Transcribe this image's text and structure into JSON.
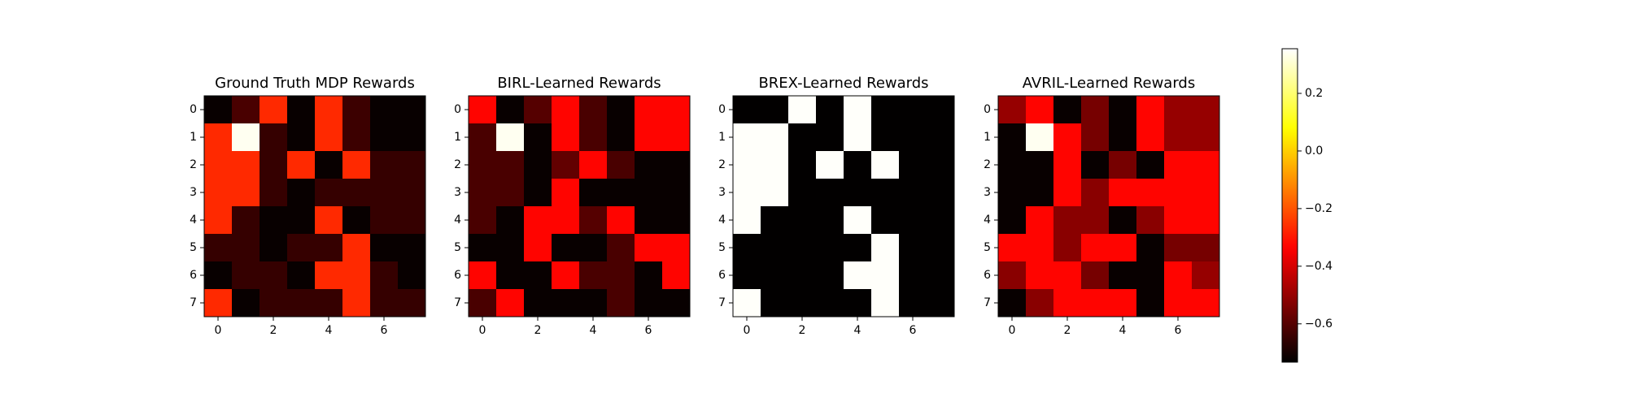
{
  "chart_data": [
    {
      "type": "heatmap",
      "title": "Ground Truth MDP Rewards",
      "colormap": "hot",
      "xlim": [
        -0.5,
        7.5
      ],
      "ylim": [
        7.5,
        -0.5
      ],
      "xticks": [
        0,
        2,
        4,
        6
      ],
      "yticks": [
        0,
        1,
        2,
        3,
        4,
        5,
        6,
        7
      ],
      "values": [
        [
          -0.72,
          -0.62,
          -0.27,
          -0.72,
          -0.27,
          -0.64,
          -0.72,
          -0.72
        ],
        [
          -0.27,
          0.34,
          -0.65,
          -0.72,
          -0.27,
          -0.64,
          -0.72,
          -0.72
        ],
        [
          -0.27,
          -0.27,
          -0.65,
          -0.27,
          -0.72,
          -0.27,
          -0.65,
          -0.65
        ],
        [
          -0.27,
          -0.27,
          -0.65,
          -0.72,
          -0.65,
          -0.65,
          -0.65,
          -0.65
        ],
        [
          -0.27,
          -0.65,
          -0.72,
          -0.72,
          -0.27,
          -0.72,
          -0.65,
          -0.65
        ],
        [
          -0.65,
          -0.65,
          -0.72,
          -0.65,
          -0.65,
          -0.27,
          -0.72,
          -0.72
        ],
        [
          -0.72,
          -0.65,
          -0.65,
          -0.72,
          -0.27,
          -0.27,
          -0.65,
          -0.72
        ],
        [
          -0.27,
          -0.72,
          -0.65,
          -0.65,
          -0.65,
          -0.27,
          -0.65,
          -0.65
        ]
      ]
    },
    {
      "type": "heatmap",
      "title": "BIRL-Learned Rewards",
      "colormap": "hot",
      "xlim": [
        -0.5,
        7.5
      ],
      "ylim": [
        7.5,
        -0.5
      ],
      "xticks": [
        0,
        2,
        4,
        6
      ],
      "yticks": [
        0,
        1,
        2,
        3,
        4,
        5,
        6,
        7
      ],
      "values": [
        [
          -0.33,
          -0.72,
          -0.6,
          -0.33,
          -0.62,
          -0.72,
          -0.33,
          -0.33
        ],
        [
          -0.62,
          0.34,
          -0.72,
          -0.33,
          -0.62,
          -0.72,
          -0.33,
          -0.33
        ],
        [
          -0.62,
          -0.62,
          -0.72,
          -0.58,
          -0.33,
          -0.62,
          -0.72,
          -0.72
        ],
        [
          -0.62,
          -0.62,
          -0.72,
          -0.33,
          -0.72,
          -0.72,
          -0.72,
          -0.72
        ],
        [
          -0.62,
          -0.72,
          -0.33,
          -0.33,
          -0.6,
          -0.33,
          -0.72,
          -0.72
        ],
        [
          -0.72,
          -0.72,
          -0.33,
          -0.72,
          -0.72,
          -0.62,
          -0.33,
          -0.33
        ],
        [
          -0.33,
          -0.72,
          -0.72,
          -0.33,
          -0.62,
          -0.62,
          -0.72,
          -0.33
        ],
        [
          -0.62,
          -0.33,
          -0.72,
          -0.72,
          -0.72,
          -0.62,
          -0.72,
          -0.72
        ]
      ]
    },
    {
      "type": "heatmap",
      "title": "BREX-Learned Rewards",
      "colormap": "hot",
      "xlim": [
        -0.5,
        7.5
      ],
      "ylim": [
        7.5,
        -0.5
      ],
      "xticks": [
        0,
        2,
        4,
        6
      ],
      "yticks": [
        0,
        1,
        2,
        3,
        4,
        5,
        6,
        7
      ],
      "values": [
        [
          -0.73,
          -0.73,
          0.35,
          -0.73,
          0.35,
          -0.73,
          -0.73,
          -0.73
        ],
        [
          0.35,
          0.35,
          -0.73,
          -0.73,
          0.35,
          -0.73,
          -0.73,
          -0.73
        ],
        [
          0.35,
          0.35,
          -0.73,
          0.35,
          -0.73,
          0.35,
          -0.73,
          -0.73
        ],
        [
          0.35,
          0.35,
          -0.73,
          -0.73,
          -0.73,
          -0.73,
          -0.73,
          -0.73
        ],
        [
          0.35,
          -0.73,
          -0.73,
          -0.73,
          0.35,
          -0.73,
          -0.73,
          -0.73
        ],
        [
          -0.73,
          -0.73,
          -0.73,
          -0.73,
          -0.73,
          0.35,
          -0.73,
          -0.73
        ],
        [
          -0.73,
          -0.73,
          -0.73,
          -0.73,
          0.35,
          0.35,
          -0.73,
          -0.73
        ],
        [
          0.35,
          -0.73,
          -0.73,
          -0.73,
          -0.73,
          0.35,
          -0.73,
          -0.73
        ]
      ]
    },
    {
      "type": "heatmap",
      "title": "AVRIL-Learned Rewards",
      "colormap": "hot",
      "xlim": [
        -0.5,
        7.5
      ],
      "ylim": [
        7.5,
        -0.5
      ],
      "xticks": [
        0,
        2,
        4,
        6
      ],
      "yticks": [
        0,
        1,
        2,
        3,
        4,
        5,
        6,
        7
      ],
      "values": [
        [
          -0.5,
          -0.33,
          -0.72,
          -0.55,
          -0.72,
          -0.33,
          -0.5,
          -0.5
        ],
        [
          -0.72,
          0.34,
          -0.33,
          -0.55,
          -0.72,
          -0.33,
          -0.5,
          -0.5
        ],
        [
          -0.72,
          -0.72,
          -0.33,
          -0.72,
          -0.55,
          -0.72,
          -0.33,
          -0.33
        ],
        [
          -0.72,
          -0.72,
          -0.33,
          -0.52,
          -0.33,
          -0.33,
          -0.33,
          -0.33
        ],
        [
          -0.72,
          -0.33,
          -0.52,
          -0.52,
          -0.72,
          -0.52,
          -0.33,
          -0.33
        ],
        [
          -0.33,
          -0.33,
          -0.52,
          -0.33,
          -0.33,
          -0.72,
          -0.55,
          -0.55
        ],
        [
          -0.52,
          -0.33,
          -0.33,
          -0.55,
          -0.72,
          -0.72,
          -0.33,
          -0.5
        ],
        [
          -0.72,
          -0.52,
          -0.33,
          -0.33,
          -0.33,
          -0.72,
          -0.33,
          -0.33
        ]
      ]
    }
  ],
  "colorbar": {
    "colormap": "hot",
    "ylim": [
      -0.733,
      0.355
    ],
    "yticks": [
      {
        "value": -0.6,
        "label": "−0.6"
      },
      {
        "value": -0.4,
        "label": "−0.4"
      },
      {
        "value": -0.2,
        "label": "−0.2"
      },
      {
        "value": 0,
        "label": "0.0"
      },
      0.2
    ]
  }
}
